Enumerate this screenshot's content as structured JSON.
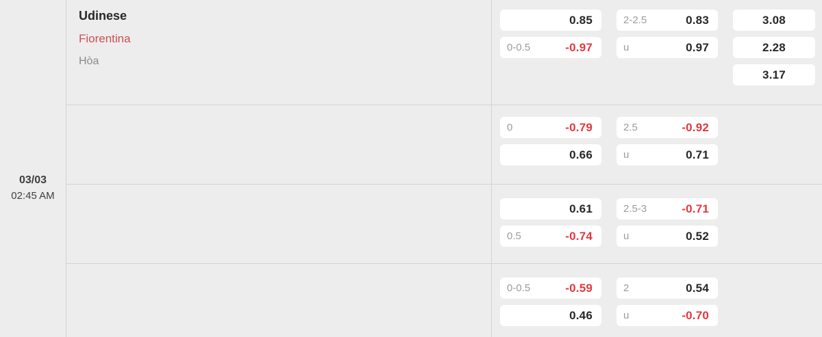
{
  "colors": {
    "background": "#ededed",
    "box_background": "#ffffff",
    "divider": "#d3d3d3",
    "text_dark": "#25272a",
    "text_gray": "#9b9b9b",
    "odds_negative": "#e2383f",
    "away_team_red": "#cf4e54"
  },
  "fixture": {
    "date": "03/03",
    "time": "02:45 AM",
    "home_team": "Udinese",
    "away_team": "Fiorentina",
    "draw_label": "Hòa"
  },
  "odds_rows": [
    {
      "handicap": [
        {
          "line": "",
          "odds": "0.85"
        },
        {
          "line": "0-0.5",
          "odds": "-0.97"
        }
      ],
      "over_under": [
        {
          "line": "2-2.5",
          "odds": "0.83"
        },
        {
          "line": "u",
          "odds": "0.97"
        }
      ],
      "one_x_two": [
        {
          "line": "",
          "odds": "3.08"
        },
        {
          "line": "",
          "odds": "2.28"
        },
        {
          "line": "",
          "odds": "3.17"
        }
      ]
    },
    {
      "handicap": [
        {
          "line": "0",
          "odds": "-0.79"
        },
        {
          "line": "",
          "odds": "0.66"
        }
      ],
      "over_under": [
        {
          "line": "2.5",
          "odds": "-0.92"
        },
        {
          "line": "u",
          "odds": "0.71"
        }
      ],
      "one_x_two": []
    },
    {
      "handicap": [
        {
          "line": "",
          "odds": "0.61"
        },
        {
          "line": "0.5",
          "odds": "-0.74"
        }
      ],
      "over_under": [
        {
          "line": "2.5-3",
          "odds": "-0.71"
        },
        {
          "line": "u",
          "odds": "0.52"
        }
      ],
      "one_x_two": []
    },
    {
      "handicap": [
        {
          "line": "0-0.5",
          "odds": "-0.59"
        },
        {
          "line": "",
          "odds": "0.46"
        }
      ],
      "over_under": [
        {
          "line": "2",
          "odds": "0.54"
        },
        {
          "line": "u",
          "odds": "-0.70"
        }
      ],
      "one_x_two": []
    }
  ]
}
